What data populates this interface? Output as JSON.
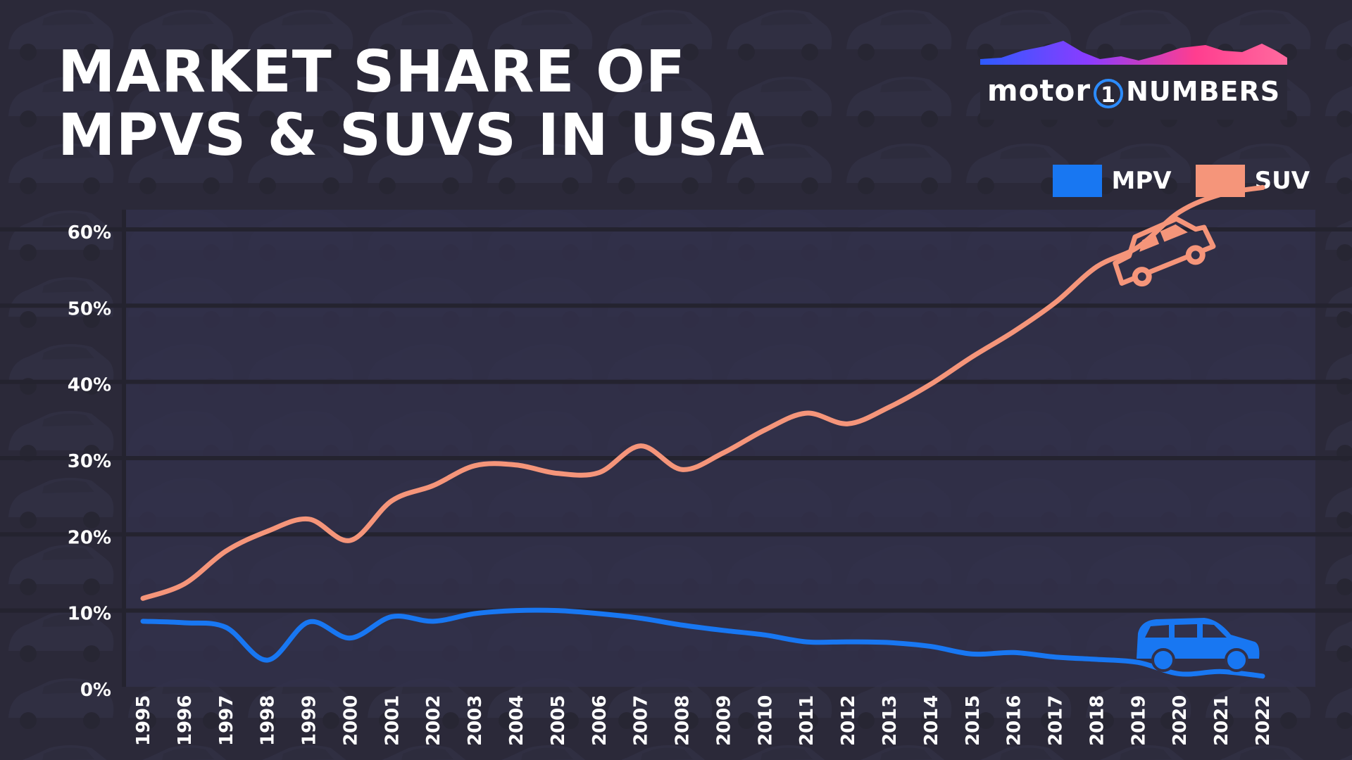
{
  "title_lines": [
    "MARKET SHARE OF",
    "MPVS & SUVS IN USA"
  ],
  "brand": {
    "part1": "motor",
    "part2": "1",
    "part3": "NUMBERS"
  },
  "colors": {
    "mpv": "#1877f2",
    "suv": "#f5957a",
    "background": "#2b2a3a"
  },
  "icons": {
    "suv": "suv-car-icon",
    "mpv": "minivan-icon"
  },
  "chart_data": {
    "type": "line",
    "title": "MARKET SHARE OF MPVS & SUVS IN USA",
    "xlabel": "",
    "ylabel": "",
    "x": [
      "1995",
      "1996",
      "1997",
      "1998",
      "1999",
      "2000",
      "2001",
      "2002",
      "2003",
      "2004",
      "2005",
      "2006",
      "2007",
      "2008",
      "2009",
      "2010",
      "2011",
      "2012",
      "2013",
      "2014",
      "2015",
      "2016",
      "2017",
      "2018",
      "2019",
      "2020",
      "2021",
      "2022"
    ],
    "ylim": [
      0,
      60
    ],
    "yticks": [
      0,
      10,
      20,
      30,
      40,
      50,
      60
    ],
    "ytick_labels": [
      "0%",
      "10%",
      "20%",
      "30%",
      "40%",
      "50%",
      "60%"
    ],
    "grid": true,
    "legend": "top-right",
    "series": [
      {
        "name": "MPV",
        "color": "#1877f2",
        "values": [
          8.6,
          8.4,
          7.8,
          3.5,
          8.5,
          6.4,
          9.2,
          8.6,
          9.6,
          10.0,
          10.0,
          9.6,
          9.0,
          8.1,
          7.4,
          6.8,
          5.9,
          5.9,
          5.8,
          5.3,
          4.3,
          4.5,
          3.9,
          3.6,
          3.2,
          1.7,
          2.0,
          1.4
        ]
      },
      {
        "name": "SUV",
        "color": "#f5957a",
        "values": [
          11.6,
          13.5,
          17.8,
          20.4,
          22.0,
          19.2,
          24.4,
          26.4,
          29.0,
          29.1,
          28.0,
          28.1,
          31.6,
          28.5,
          30.7,
          33.7,
          35.9,
          34.5,
          36.7,
          39.7,
          43.3,
          46.6,
          50.4,
          55.1,
          57.7,
          62.3,
          64.6,
          65.5
        ]
      }
    ]
  }
}
